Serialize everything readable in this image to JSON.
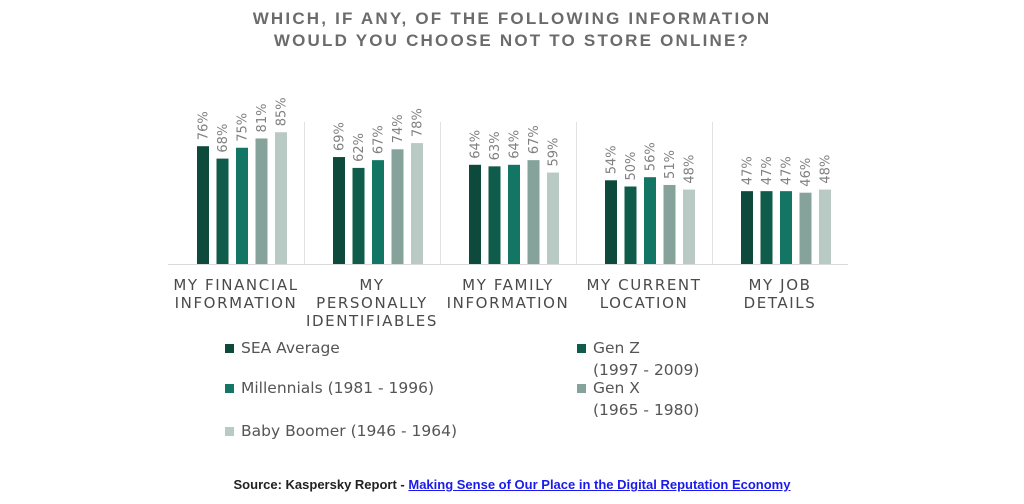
{
  "title_line1": "WHICH, IF ANY, OF THE FOLLOWING INFORMATION",
  "title_line2": "WOULD YOU CHOOSE NOT TO STORE ONLINE?",
  "chart_data": {
    "type": "bar",
    "categories": [
      [
        "MY FINANCIAL",
        "INFORMATION"
      ],
      [
        "MY",
        "PERSONALLY",
        "IDENTIFIABLES"
      ],
      [
        "MY FAMILY",
        "INFORMATION"
      ],
      [
        "MY CURRENT",
        "LOCATION"
      ],
      [
        "MY JOB",
        "DETAILS"
      ]
    ],
    "series": [
      {
        "name": "SEA Average",
        "color": "#0e4a3b",
        "values": [
          76,
          69,
          64,
          54,
          47
        ]
      },
      {
        "name": "Gen Z (1997 - 2009)",
        "color": "#0f5c4b",
        "values": [
          68,
          62,
          63,
          50,
          47
        ]
      },
      {
        "name": "Millennials (1981 - 1996)",
        "color": "#137563",
        "values": [
          75,
          67,
          64,
          56,
          47
        ]
      },
      {
        "name": "Gen X (1965 - 1980)",
        "color": "#86a39b",
        "values": [
          81,
          74,
          67,
          51,
          46
        ]
      },
      {
        "name": "Baby Boomer (1946 - 1964)",
        "color": "#b9c9c4",
        "values": [
          85,
          78,
          59,
          48,
          48
        ]
      }
    ],
    "data_labels": [
      [
        "76%",
        "68%",
        "75%",
        "81%",
        "85%"
      ],
      [
        "69%",
        "62%",
        "67%",
        "74%",
        "78%"
      ],
      [
        "64%",
        "63%",
        "64%",
        "67%",
        "59%"
      ],
      [
        "54%",
        "50%",
        "56%",
        "51%",
        "48%"
      ],
      [
        "47%",
        "47%",
        "47%",
        "46%",
        "48%"
      ]
    ],
    "grid": false,
    "legend_position": "bottom"
  },
  "legend": [
    {
      "lines": [
        "SEA Average"
      ],
      "color": "#0e4a3b"
    },
    {
      "lines": [
        "Gen Z",
        "(1997 - 2009)"
      ],
      "color": "#0f5c4b"
    },
    {
      "lines": [
        "Millennials (1981 - 1996)"
      ],
      "color": "#137563"
    },
    {
      "lines": [
        "Gen X",
        "(1965 - 1980)"
      ],
      "color": "#86a39b"
    },
    {
      "lines": [
        "Baby Boomer (1946 - 1964)"
      ],
      "color": "#b9c9c4"
    }
  ],
  "source": {
    "prefix": "Source: Kaspersky Report - ",
    "link_text": "Making Sense of Our Place in the Digital Reputation Economy"
  }
}
